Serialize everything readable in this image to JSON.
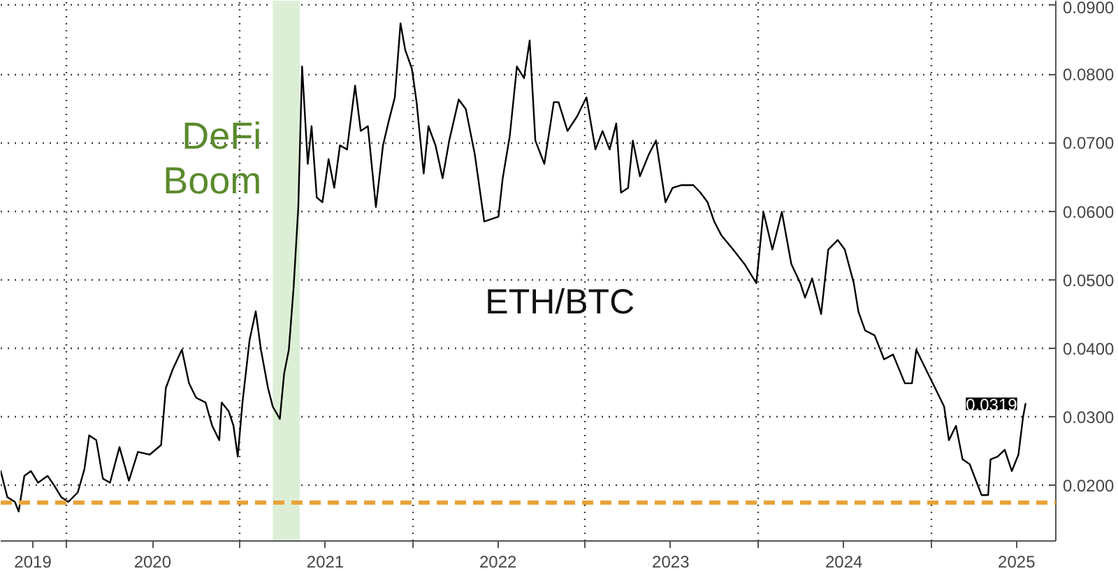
{
  "chart_data": {
    "type": "line",
    "annotations": [
      "ETH/BTC",
      {
        "text": "0.0319",
        "x": "2025-07-20",
        "y": 0.0319
      }
    ],
    "x": [
      "2019-08-15",
      "2019-08-29",
      "2019-09-14",
      "2019-09-22",
      "2019-10-04",
      "2019-10-18",
      "2019-11-02",
      "2019-11-22",
      "2019-12-06",
      "2019-12-21",
      "2020-01-05",
      "2020-01-25",
      "2020-02-08",
      "2020-02-18",
      "2020-03-04",
      "2020-03-18",
      "2020-04-02",
      "2020-04-22",
      "2020-05-12",
      "2020-05-31",
      "2020-06-25",
      "2020-07-19",
      "2020-07-29",
      "2020-08-13",
      "2020-09-01",
      "2020-09-16",
      "2020-10-01",
      "2020-10-21",
      "2020-11-04",
      "2020-11-19",
      "2020-11-24",
      "2020-12-09",
      "2020-12-19",
      "2020-12-28",
      "2021-01-07",
      "2021-01-22",
      "2021-02-04",
      "2021-02-15",
      "2021-03-02",
      "2021-03-12",
      "2021-03-27",
      "2021-04-05",
      "2021-04-15",
      "2021-04-25",
      "2021-05-05",
      "2021-05-13",
      "2021-05-25",
      "2021-06-02",
      "2021-06-13",
      "2021-06-25",
      "2021-07-08",
      "2021-07-20",
      "2021-08-01",
      "2021-08-16",
      "2021-09-02",
      "2021-09-14",
      "2021-09-29",
      "2021-10-16",
      "2021-10-31",
      "2021-11-12",
      "2021-11-25",
      "2021-12-07",
      "2021-12-17",
      "2021-12-31",
      "2022-01-10",
      "2022-01-25",
      "2022-02-04",
      "2022-02-19",
      "2022-03-06",
      "2022-03-20",
      "2022-04-09",
      "2022-04-24",
      "2022-05-13",
      "2022-06-02",
      "2022-07-02",
      "2022-07-11",
      "2022-07-26",
      "2022-08-10",
      "2022-08-25",
      "2022-09-06",
      "2022-09-18",
      "2022-10-07",
      "2022-10-27",
      "2022-11-06",
      "2022-11-25",
      "2022-12-15",
      "2023-01-04",
      "2023-01-23",
      "2023-02-07",
      "2023-02-22",
      "2023-03-08",
      "2023-03-18",
      "2023-04-02",
      "2023-04-12",
      "2023-04-27",
      "2023-05-16",
      "2023-05-31",
      "2023-06-20",
      "2023-07-05",
      "2023-07-24",
      "2023-08-18",
      "2023-09-02",
      "2023-09-17",
      "2023-10-01",
      "2023-10-16",
      "2023-11-10",
      "2023-12-04",
      "2023-12-29",
      "2024-01-13",
      "2024-02-01",
      "2024-02-21",
      "2024-03-12",
      "2024-03-31",
      "2024-04-10",
      "2024-04-25",
      "2024-05-14",
      "2024-05-29",
      "2024-06-18",
      "2024-07-03",
      "2024-07-22",
      "2024-08-01",
      "2024-08-15",
      "2024-09-04",
      "2024-09-24",
      "2024-10-13",
      "2024-11-07",
      "2024-11-22",
      "2024-12-01",
      "2024-12-21",
      "2025-01-10",
      "2025-01-29",
      "2025-02-08",
      "2025-02-23",
      "2025-03-09",
      "2025-03-24",
      "2025-04-08",
      "2025-04-18",
      "2025-05-02",
      "2025-05-07",
      "2025-05-22",
      "2025-06-06",
      "2025-06-21",
      "2025-07-05",
      "2025-07-15",
      "2025-07-20"
    ],
    "series": [
      {
        "color": "#000000",
        "values": [
          0.0221,
          0.0183,
          0.0176,
          0.0162,
          0.0214,
          0.0221,
          0.0204,
          0.0214,
          0.02,
          0.0183,
          0.0176,
          0.019,
          0.0224,
          0.0273,
          0.0266,
          0.021,
          0.0204,
          0.0256,
          0.0207,
          0.0249,
          0.0245,
          0.0259,
          0.0342,
          0.037,
          0.0398,
          0.0349,
          0.0328,
          0.0321,
          0.0287,
          0.0266,
          0.0321,
          0.0308,
          0.0287,
          0.0242,
          0.0321,
          0.0412,
          0.0454,
          0.0398,
          0.0342,
          0.0315,
          0.0297,
          0.0363,
          0.0398,
          0.0488,
          0.0606,
          0.0811,
          0.0669,
          0.0724,
          0.062,
          0.0613,
          0.0676,
          0.0634,
          0.0696,
          0.069,
          0.0783,
          0.0717,
          0.0724,
          0.0606,
          0.0696,
          0.0731,
          0.0766,
          0.0874,
          0.0835,
          0.0808,
          0.0759,
          0.0655,
          0.0724,
          0.0696,
          0.0648,
          0.0703,
          0.0763,
          0.0749,
          0.0683,
          0.0585,
          0.0592,
          0.0648,
          0.071,
          0.0811,
          0.0794,
          0.0849,
          0.0703,
          0.0669,
          0.0759,
          0.0759,
          0.0717,
          0.0738,
          0.0766,
          0.069,
          0.0717,
          0.069,
          0.0728,
          0.0627,
          0.0634,
          0.0703,
          0.0651,
          0.0683,
          0.0703,
          0.0613,
          0.0634,
          0.0638,
          0.0638,
          0.0627,
          0.0613,
          0.0585,
          0.0565,
          0.0544,
          0.0523,
          0.0495,
          0.0599,
          0.0544,
          0.0599,
          0.0523,
          0.0495,
          0.0474,
          0.0502,
          0.045,
          0.0544,
          0.0558,
          0.0544,
          0.0495,
          0.0453,
          0.0426,
          0.0419,
          0.0384,
          0.0391,
          0.0349,
          0.0349,
          0.0398,
          0.037,
          0.0342,
          0.0315,
          0.0266,
          0.0287,
          0.0238,
          0.0231,
          0.0204,
          0.0186,
          0.0186,
          0.0238,
          0.0242,
          0.0252,
          0.0221,
          0.0245,
          0.0301,
          0.0319
        ]
      }
    ],
    "xlim": [
      "2019-08-15",
      "2025-09-22"
    ],
    "xticks": [
      {
        "value": "2019-10-22",
        "label": "2019"
      },
      {
        "value": "2020-01-01",
        "label": null
      },
      {
        "value": "2020-07-01",
        "label": "2020"
      },
      {
        "value": "2021-01-01",
        "label": null
      },
      {
        "value": "2021-07-01",
        "label": "2021"
      },
      {
        "value": "2022-01-01",
        "label": null
      },
      {
        "value": "2022-07-01",
        "label": "2022"
      },
      {
        "value": "2023-01-01",
        "label": null
      },
      {
        "value": "2023-07-01",
        "label": "2023"
      },
      {
        "value": "2024-01-01",
        "label": null
      },
      {
        "value": "2024-07-01",
        "label": "2024"
      },
      {
        "value": "2025-01-01",
        "label": null
      },
      {
        "value": "2025-07-01",
        "label": "2025"
      }
    ],
    "ylim": [
      0.0119,
      0.0907
    ],
    "yticks": [
      {
        "value": 0.02,
        "label": "0.0200"
      },
      {
        "value": 0.03,
        "label": "0.0300"
      },
      {
        "value": 0.04,
        "label": "0.0400"
      },
      {
        "value": 0.05,
        "label": "0.0500"
      },
      {
        "value": 0.06,
        "label": "0.0600"
      },
      {
        "value": 0.07,
        "label": "0.0700"
      },
      {
        "value": 0.08,
        "label": "0.0800"
      },
      {
        "value": 0.09,
        "label": "0.0900"
      }
    ],
    "ref_lines": [
      {
        "axis": "y",
        "value": 0.0175,
        "color": "#e8a33a",
        "line_style": "dashed"
      }
    ],
    "bands": [
      {
        "axis": "x",
        "from": "2021-03-12",
        "to": "2021-05-08",
        "label": "DeFi\nBoom",
        "color": "#dcefd6"
      }
    ],
    "grid": true,
    "marker": "none",
    "line_style": "solid"
  }
}
